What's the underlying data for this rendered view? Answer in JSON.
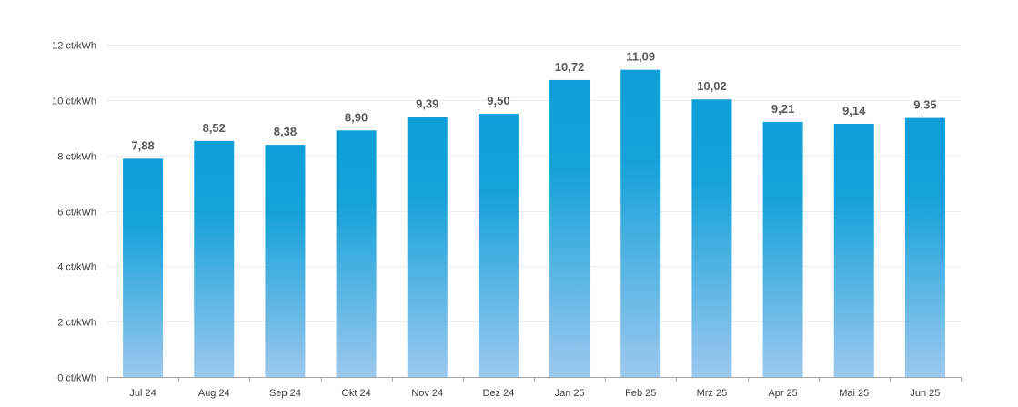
{
  "chart_data": {
    "type": "bar",
    "categories": [
      "Jul 24",
      "Aug 24",
      "Sep 24",
      "Okt 24",
      "Nov 24",
      "Dez 24",
      "Jan 25",
      "Feb 25",
      "Mrz 25",
      "Apr 25",
      "Mai 25",
      "Jun 25"
    ],
    "values": [
      7.88,
      8.52,
      8.38,
      8.9,
      9.39,
      9.5,
      10.72,
      11.09,
      10.02,
      9.21,
      9.14,
      9.35
    ],
    "data_labels": [
      "7,88",
      "8,52",
      "8,38",
      "8,90",
      "9,39",
      "9,50",
      "10,72",
      "11,09",
      "10,02",
      "9,21",
      "9,14",
      "9,35"
    ],
    "y_ticks": [
      0,
      2,
      4,
      6,
      8,
      10,
      12
    ],
    "y_tick_labels": [
      "0 ct/kWh",
      "2 ct/kWh",
      "4 ct/kWh",
      "6 ct/kWh",
      "8 ct/kWh",
      "10 ct/kWh",
      "12 ct/kWh"
    ],
    "ylim": [
      0,
      12
    ],
    "title": "",
    "xlabel": "",
    "ylabel": "",
    "grid": true,
    "legend": "none",
    "colors": {
      "bar_top": "#0e9fd8",
      "bar_mid": "#16a2d9",
      "bar_bottom": "#9cc8ee",
      "data_label": "#595959",
      "tick_label": "#404040",
      "grid": "#ececec",
      "axis": "#a6a6a6"
    }
  }
}
